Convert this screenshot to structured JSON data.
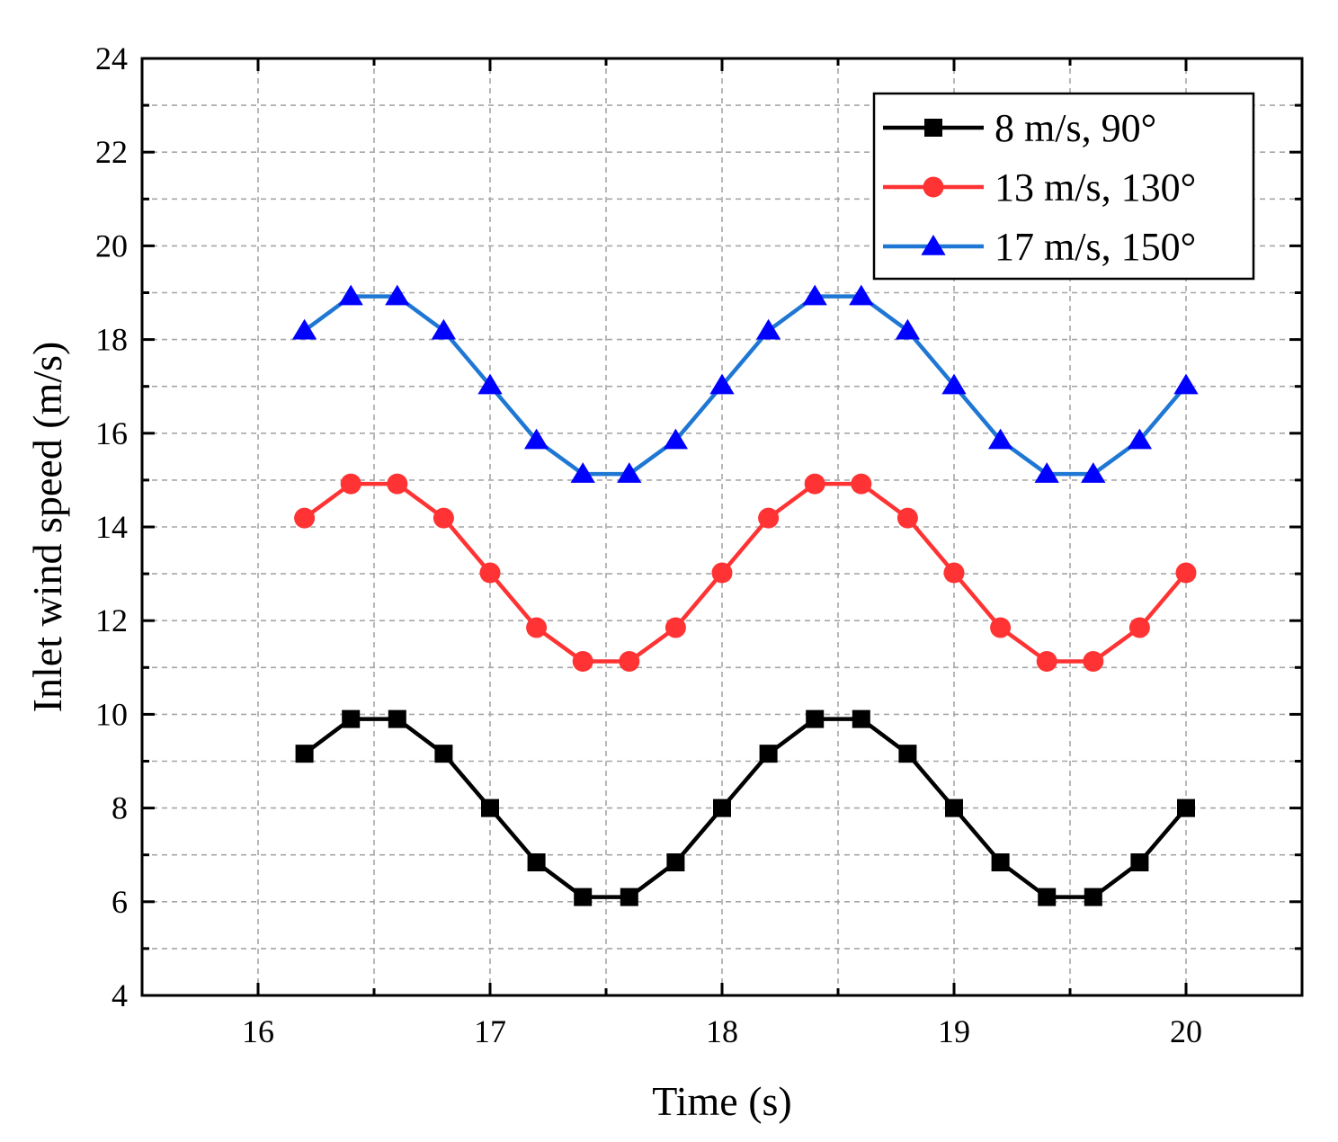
{
  "chart_data": {
    "type": "line",
    "title": "",
    "xlabel": "Time (s)",
    "ylabel": "Inlet wind speed (m/s)",
    "xlim": [
      15.5,
      20.5
    ],
    "ylim": [
      4,
      24
    ],
    "xticks": [
      16,
      17,
      18,
      19,
      20
    ],
    "xtick_labels": [
      "16",
      "17",
      "18",
      "19",
      "20"
    ],
    "yticks": [
      4,
      6,
      8,
      10,
      12,
      14,
      16,
      18,
      20,
      22,
      24
    ],
    "ytick_labels": [
      "4",
      "6",
      "8",
      "10",
      "12",
      "14",
      "16",
      "18",
      "20",
      "22",
      "24"
    ],
    "grid": true,
    "legend_position": "top-right",
    "x": [
      16.2,
      16.4,
      16.6,
      16.8,
      17.0,
      17.2,
      17.4,
      17.6,
      17.8,
      18.0,
      18.2,
      18.4,
      18.6,
      18.8,
      19.0,
      19.2,
      19.4,
      19.6,
      19.8,
      20.0
    ],
    "series": [
      {
        "name": "8 m/s, 90°",
        "color": "#000000",
        "marker": "square",
        "values": [
          9.16,
          9.9,
          9.9,
          9.16,
          8.0,
          6.84,
          6.1,
          6.1,
          6.84,
          8.0,
          9.16,
          9.9,
          9.9,
          9.16,
          8.0,
          6.84,
          6.1,
          6.1,
          6.84,
          8.0
        ]
      },
      {
        "name": "13 m/s, 130°",
        "color": "#ff3333",
        "marker": "circle",
        "values": [
          14.19,
          14.92,
          14.92,
          14.19,
          13.02,
          11.85,
          11.13,
          11.13,
          11.85,
          13.02,
          14.19,
          14.92,
          14.92,
          14.19,
          13.02,
          11.85,
          11.13,
          11.13,
          11.85,
          13.02
        ]
      },
      {
        "name": "17 m/s, 150°",
        "color": "#1f77d4",
        "marker": "triangle",
        "markerColor": "#0000ff",
        "values": [
          18.19,
          18.92,
          18.92,
          18.19,
          17.02,
          15.85,
          15.13,
          15.13,
          15.85,
          17.02,
          18.19,
          18.92,
          18.92,
          18.19,
          17.02,
          15.85,
          15.13,
          15.13,
          15.85,
          17.02
        ]
      }
    ]
  }
}
